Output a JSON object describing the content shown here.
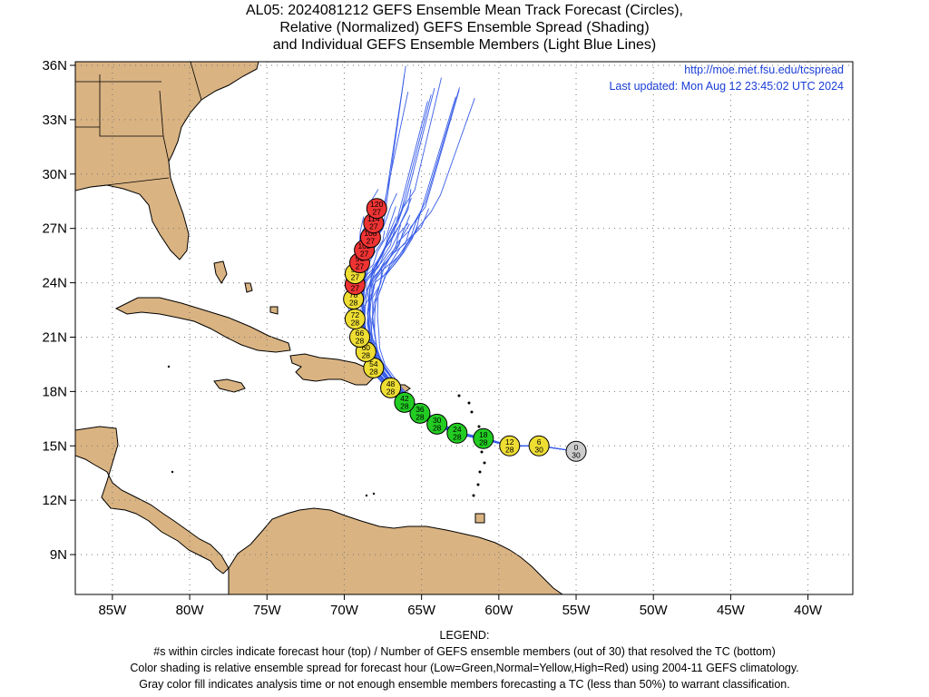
{
  "title_lines": [
    "AL05: 2024081212 GEFS Ensemble Mean Track Forecast (Circles),",
    "Relative (Normalized) GEFS Ensemble Spread (Shading)",
    "and Individual GEFS Ensemble Members (Light Blue Lines)"
  ],
  "info": {
    "url": "http://moe.met.fsu.edu/tcspread",
    "updated": "Last updated: Mon Aug 12 23:45:02 UTC 2024"
  },
  "axes": {
    "lon_ticks": [
      "85W",
      "80W",
      "75W",
      "70W",
      "65W",
      "60W",
      "55W",
      "50W",
      "45W",
      "40W"
    ],
    "lat_ticks": [
      "36N",
      "33N",
      "30N",
      "27N",
      "24N",
      "21N",
      "18N",
      "15N",
      "12N",
      "9N"
    ]
  },
  "colors": {
    "land": "#d9b382",
    "ensemble_line": "#3a5ee8",
    "low_spread": "#22cc22",
    "normal_spread": "#eedd33",
    "high_spread": "#ee3333",
    "analysis": "#cccccc"
  },
  "track": [
    {
      "hour": "0",
      "members": "30",
      "lat": 14.7,
      "lon": -55.0,
      "class": "analysis"
    },
    {
      "hour": "6",
      "members": "30",
      "lat": 15.0,
      "lon": -57.4,
      "class": "normal"
    },
    {
      "hour": "12",
      "members": "28",
      "lat": 15.0,
      "lon": -59.3,
      "class": "normal"
    },
    {
      "hour": "18",
      "members": "28",
      "lat": 15.4,
      "lon": -61.0,
      "class": "low"
    },
    {
      "hour": "24",
      "members": "28",
      "lat": 15.7,
      "lon": -62.7,
      "class": "low"
    },
    {
      "hour": "30",
      "members": "28",
      "lat": 16.2,
      "lon": -64.0,
      "class": "low"
    },
    {
      "hour": "36",
      "members": "28",
      "lat": 16.8,
      "lon": -65.1,
      "class": "low"
    },
    {
      "hour": "42",
      "members": "28",
      "lat": 17.4,
      "lon": -66.1,
      "class": "low"
    },
    {
      "hour": "48",
      "members": "28",
      "lat": 18.2,
      "lon": -67.0,
      "class": "normal"
    },
    {
      "hour": "54",
      "members": "28",
      "lat": 19.3,
      "lon": -68.1,
      "class": "normal"
    },
    {
      "hour": "60",
      "members": "28",
      "lat": 20.2,
      "lon": -68.6,
      "class": "normal"
    },
    {
      "hour": "66",
      "members": "28",
      "lat": 21.0,
      "lon": -69.0,
      "class": "normal"
    },
    {
      "hour": "72",
      "members": "28",
      "lat": 22.0,
      "lon": -69.3,
      "class": "normal"
    },
    {
      "hour": "78",
      "members": "28",
      "lat": 23.1,
      "lon": -69.4,
      "class": "normal"
    },
    {
      "hour": "84",
      "members": "27",
      "lat": 23.9,
      "lon": -69.3,
      "class": "high"
    },
    {
      "hour": "90",
      "members": "27",
      "lat": 24.5,
      "lon": -69.3,
      "class": "normal"
    },
    {
      "hour": "96",
      "members": "27",
      "lat": 25.1,
      "lon": -69.0,
      "class": "high"
    },
    {
      "hour": "102",
      "members": "27",
      "lat": 25.8,
      "lon": -68.7,
      "class": "high"
    },
    {
      "hour": "108",
      "members": "27",
      "lat": 26.5,
      "lon": -68.3,
      "class": "high"
    },
    {
      "hour": "114",
      "members": "27",
      "lat": 27.3,
      "lon": -68.1,
      "class": "high"
    },
    {
      "hour": "120",
      "members": "27",
      "lat": 28.1,
      "lon": -67.9,
      "class": "high"
    }
  ],
  "legend": {
    "heading": "LEGEND:",
    "lines": [
      "#s within circles indicate forecast hour (top) / Number of GEFS ensemble members (out of 30) that resolved the TC (bottom)",
      "Color shading is relative ensemble spread for forecast hour (Low=Green,Normal=Yellow,High=Red) using 2004-11 GEFS climatology.",
      "Gray color fill indicates analysis time or not enough ensemble members forecasting a TC (less than 50%) to warrant classification."
    ]
  }
}
